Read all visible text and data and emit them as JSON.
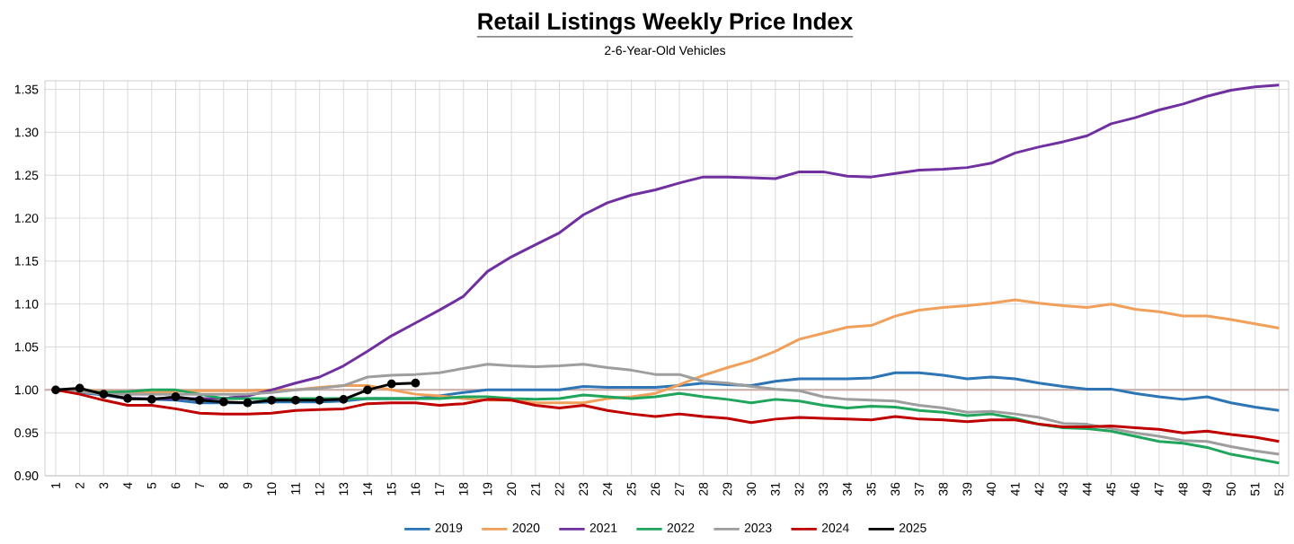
{
  "chart_data": {
    "type": "line",
    "title": "Retail Listings Weekly Price Index",
    "subtitle": "2-6-Year-Old Vehicles",
    "categories": [
      "1",
      "2",
      "3",
      "4",
      "5",
      "6",
      "7",
      "8",
      "9",
      "10",
      "11",
      "12",
      "13",
      "14",
      "15",
      "16",
      "17",
      "18",
      "19",
      "20",
      "21",
      "22",
      "23",
      "24",
      "25",
      "26",
      "27",
      "28",
      "29",
      "30",
      "31",
      "32",
      "33",
      "34",
      "35",
      "36",
      "37",
      "38",
      "39",
      "40",
      "41",
      "42",
      "43",
      "44",
      "45",
      "46",
      "47",
      "48",
      "49",
      "50",
      "51",
      "52"
    ],
    "ylim": [
      0.9,
      1.36
    ],
    "yticks": [
      {
        "value": 0.9,
        "label": "0.90"
      },
      {
        "value": 0.95,
        "label": "0.95"
      },
      {
        "value": 1.0,
        "label": "1.00"
      },
      {
        "value": 1.05,
        "label": "1.05"
      },
      {
        "value": 1.1,
        "label": "1.10"
      },
      {
        "value": 1.15,
        "label": "1.15"
      },
      {
        "value": 1.2,
        "label": "1.20"
      },
      {
        "value": 1.25,
        "label": "1.25"
      },
      {
        "value": 1.3,
        "label": "1.30"
      },
      {
        "value": 1.35,
        "label": "1.35"
      }
    ],
    "grid": true,
    "legend": "bottom",
    "marker": "none",
    "line_style": "solid",
    "ref_lines": [
      {
        "axis": "y",
        "value": 1.0,
        "color": "#c9aaa2"
      }
    ],
    "series": [
      {
        "name": "2019",
        "color": "#2e75b6",
        "values": [
          1.0,
          0.997,
          0.994,
          0.99,
          0.989,
          0.988,
          0.985,
          0.985,
          0.985,
          0.986,
          0.986,
          0.986,
          0.987,
          0.99,
          0.99,
          0.99,
          0.993,
          0.997,
          1.0,
          1.0,
          1.0,
          1.0,
          1.004,
          1.003,
          1.003,
          1.003,
          1.005,
          1.008,
          1.006,
          1.005,
          1.01,
          1.013,
          1.013,
          1.013,
          1.014,
          1.02,
          1.02,
          1.017,
          1.013,
          1.015,
          1.013,
          1.008,
          1.004,
          1.001,
          1.001,
          0.996,
          0.992,
          0.989,
          0.992,
          0.985,
          0.98,
          0.976
        ]
      },
      {
        "name": "2020",
        "color": "#f0a05a",
        "values": [
          1.0,
          0.999,
          0.998,
          0.997,
          0.997,
          0.998,
          0.999,
          0.999,
          0.999,
          1.0,
          1.0,
          1.003,
          1.005,
          1.005,
          1.0,
          0.995,
          0.993,
          0.99,
          0.988,
          0.988,
          0.985,
          0.985,
          0.985,
          0.99,
          0.992,
          0.996,
          1.006,
          1.017,
          1.026,
          1.034,
          1.045,
          1.059,
          1.066,
          1.073,
          1.075,
          1.086,
          1.093,
          1.096,
          1.098,
          1.101,
          1.105,
          1.101,
          1.098,
          1.096,
          1.1,
          1.094,
          1.091,
          1.086,
          1.086,
          1.082,
          1.077,
          1.072
        ]
      },
      {
        "name": "2021",
        "color": "#7030a0",
        "values": [
          null,
          null,
          0.995,
          0.99,
          0.99,
          0.99,
          0.99,
          0.99,
          0.993,
          1.0,
          1.008,
          1.015,
          1.028,
          1.045,
          1.063,
          1.078,
          1.093,
          1.109,
          1.138,
          1.155,
          1.169,
          1.183,
          1.204,
          1.218,
          1.227,
          1.233,
          1.241,
          1.248,
          1.248,
          1.247,
          1.246,
          1.254,
          1.254,
          1.249,
          1.248,
          1.252,
          1.256,
          1.257,
          1.259,
          1.264,
          1.276,
          1.283,
          1.289,
          1.296,
          1.31,
          1.317,
          1.326,
          1.333,
          1.342,
          1.349,
          1.353,
          1.355
        ]
      },
      {
        "name": "2022",
        "color": "#1fa55c",
        "values": [
          1.0,
          0.998,
          0.997,
          0.998,
          1.0,
          1.0,
          0.995,
          0.99,
          0.99,
          0.99,
          0.99,
          0.99,
          0.99,
          0.99,
          0.99,
          0.99,
          0.99,
          0.992,
          0.992,
          0.99,
          0.989,
          0.99,
          0.994,
          0.992,
          0.99,
          0.992,
          0.996,
          0.992,
          0.989,
          0.985,
          0.989,
          0.987,
          0.982,
          0.979,
          0.981,
          0.98,
          0.976,
          0.974,
          0.97,
          0.972,
          0.967,
          0.96,
          0.956,
          0.955,
          0.952,
          0.946,
          0.94,
          0.938,
          0.933,
          0.925,
          0.92,
          0.915
        ]
      },
      {
        "name": "2023",
        "color": "#9e9e9e",
        "values": [
          1.0,
          0.998,
          0.995,
          0.995,
          0.995,
          0.995,
          0.995,
          0.995,
          0.995,
          0.997,
          1.0,
          1.002,
          1.005,
          1.015,
          1.017,
          1.018,
          1.02,
          1.025,
          1.03,
          1.028,
          1.027,
          1.028,
          1.03,
          1.026,
          1.023,
          1.018,
          1.018,
          1.01,
          1.008,
          1.004,
          1.001,
          0.999,
          0.992,
          0.989,
          0.988,
          0.987,
          0.982,
          0.979,
          0.974,
          0.975,
          0.972,
          0.968,
          0.961,
          0.96,
          0.955,
          0.95,
          0.946,
          0.941,
          0.94,
          0.934,
          0.929,
          0.925
        ]
      },
      {
        "name": "2024",
        "color": "#c00000",
        "values": [
          1.0,
          0.995,
          0.988,
          0.982,
          0.982,
          0.978,
          0.973,
          0.972,
          0.972,
          0.973,
          0.976,
          0.977,
          0.978,
          0.984,
          0.985,
          0.985,
          0.982,
          0.984,
          0.989,
          0.988,
          0.982,
          0.979,
          0.982,
          0.976,
          0.972,
          0.969,
          0.972,
          0.969,
          0.967,
          0.962,
          0.966,
          0.968,
          0.967,
          0.966,
          0.965,
          0.969,
          0.966,
          0.965,
          0.963,
          0.965,
          0.965,
          0.96,
          0.957,
          0.957,
          0.958,
          0.956,
          0.954,
          0.95,
          0.952,
          0.948,
          0.945,
          0.94
        ]
      },
      {
        "name": "2025",
        "color": "#000000",
        "marker": "circle",
        "values": [
          1.0,
          1.002,
          0.995,
          0.99,
          0.989,
          0.992,
          0.988,
          0.986,
          0.985,
          0.988,
          0.988,
          0.988,
          0.989,
          1.0,
          1.007,
          1.008,
          null,
          null,
          null,
          null,
          null,
          null,
          null,
          null,
          null,
          null,
          null,
          null,
          null,
          null,
          null,
          null,
          null,
          null,
          null,
          null,
          null,
          null,
          null,
          null,
          null,
          null,
          null,
          null,
          null,
          null,
          null,
          null,
          null,
          null,
          null,
          null
        ]
      }
    ]
  }
}
